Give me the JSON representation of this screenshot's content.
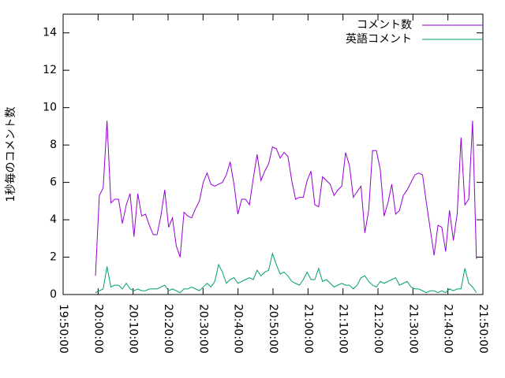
{
  "chart_data": {
    "type": "line",
    "ylabel": "1秒毎のコメント数",
    "x": [
      "19:59:15",
      "20:00:21",
      "20:01:27",
      "20:02:33",
      "20:03:39",
      "20:04:45",
      "20:05:51",
      "20:06:57",
      "20:08:03",
      "20:09:09",
      "20:10:15",
      "20:11:21",
      "20:12:27",
      "20:13:33",
      "20:14:39",
      "20:15:45",
      "20:16:51",
      "20:17:57",
      "20:19:03",
      "20:20:09",
      "20:21:15",
      "20:22:21",
      "20:23:27",
      "20:24:33",
      "20:25:39",
      "20:26:45",
      "20:27:51",
      "20:28:57",
      "20:30:03",
      "20:31:09",
      "20:32:15",
      "20:33:21",
      "20:34:27",
      "20:35:33",
      "20:36:39",
      "20:37:45",
      "20:38:51",
      "20:39:57",
      "20:41:03",
      "20:42:09",
      "20:43:15",
      "20:44:21",
      "20:45:27",
      "20:46:33",
      "20:47:39",
      "20:48:45",
      "20:49:51",
      "20:50:57",
      "20:52:03",
      "20:53:09",
      "20:54:15",
      "20:55:21",
      "20:56:27",
      "20:57:33",
      "20:58:39",
      "20:59:45",
      "21:00:51",
      "21:01:57",
      "21:03:03",
      "21:04:09",
      "21:05:15",
      "21:06:21",
      "21:07:27",
      "21:08:33",
      "21:09:39",
      "21:10:45",
      "21:11:51",
      "21:12:57",
      "21:14:03",
      "21:15:09",
      "21:16:15",
      "21:17:21",
      "21:18:27",
      "21:19:33",
      "21:20:39",
      "21:21:45",
      "21:22:51",
      "21:23:57",
      "21:25:03",
      "21:26:09",
      "21:27:15",
      "21:28:21",
      "21:29:27",
      "21:30:33",
      "21:31:39",
      "21:32:45",
      "21:33:51",
      "21:34:57",
      "21:36:03",
      "21:37:09",
      "21:38:15",
      "21:39:21",
      "21:40:27",
      "21:41:33",
      "21:42:39",
      "21:43:45",
      "21:44:51",
      "21:45:57",
      "21:47:03",
      "21:48:09"
    ],
    "series": [
      {
        "name": "コメント数",
        "color": "#9400d3",
        "values": [
          1.0,
          5.3,
          5.7,
          9.3,
          4.9,
          5.1,
          5.1,
          3.8,
          4.8,
          5.4,
          3.1,
          5.4,
          4.2,
          4.3,
          3.7,
          3.2,
          3.2,
          4.2,
          5.6,
          3.6,
          4.1,
          2.6,
          2.0,
          4.4,
          4.2,
          4.1,
          4.6,
          5.0,
          6.0,
          6.5,
          5.9,
          5.8,
          5.9,
          6.0,
          6.4,
          7.1,
          5.9,
          4.3,
          5.1,
          5.1,
          4.8,
          6.2,
          7.5,
          6.1,
          6.6,
          7.0,
          7.9,
          7.8,
          7.3,
          7.6,
          7.4,
          6.1,
          5.1,
          5.2,
          5.2,
          6.1,
          6.6,
          4.8,
          4.7,
          6.3,
          6.1,
          5.9,
          5.3,
          5.6,
          5.8,
          7.6,
          6.9,
          5.2,
          5.5,
          5.8,
          3.3,
          4.5,
          7.7,
          7.7,
          6.7,
          4.2,
          4.9,
          5.9,
          4.3,
          4.5,
          5.3,
          5.6,
          6.0,
          6.4,
          6.5,
          6.4,
          4.9,
          3.5,
          2.1,
          3.7,
          3.6,
          2.3,
          4.5,
          2.9,
          4.3,
          8.4,
          4.8,
          5.1,
          9.3,
          1.9
        ]
      },
      {
        "name": "英語コメント",
        "color": "#009e73",
        "values": [
          0.1,
          0.2,
          0.3,
          1.5,
          0.4,
          0.5,
          0.5,
          0.3,
          0.6,
          0.3,
          0.2,
          0.3,
          0.2,
          0.2,
          0.3,
          0.3,
          0.3,
          0.4,
          0.5,
          0.2,
          0.3,
          0.2,
          0.1,
          0.3,
          0.3,
          0.4,
          0.3,
          0.2,
          0.4,
          0.6,
          0.4,
          0.7,
          1.6,
          1.2,
          0.6,
          0.8,
          0.9,
          0.6,
          0.7,
          0.8,
          0.9,
          0.8,
          1.3,
          1.0,
          1.2,
          1.3,
          2.2,
          1.6,
          1.1,
          1.2,
          1.0,
          0.7,
          0.6,
          0.5,
          0.8,
          1.2,
          0.8,
          0.8,
          1.4,
          0.7,
          0.8,
          0.6,
          0.4,
          0.5,
          0.6,
          0.5,
          0.5,
          0.3,
          0.5,
          0.9,
          1.0,
          0.7,
          0.5,
          0.4,
          0.7,
          0.6,
          0.7,
          0.8,
          0.9,
          0.5,
          0.6,
          0.7,
          0.4,
          0.3,
          0.3,
          0.2,
          0.1,
          0.2,
          0.2,
          0.1,
          0.2,
          0.1,
          0.3,
          0.2,
          0.3,
          0.3,
          1.4,
          0.6,
          0.4,
          0.1
        ]
      }
    ],
    "xlim": [
      "19:50:00",
      "21:50:00"
    ],
    "xticks": [
      "19:50:00",
      "20:00:00",
      "20:10:00",
      "20:20:00",
      "20:30:00",
      "20:40:00",
      "20:50:00",
      "21:00:00",
      "21:10:00",
      "21:20:00",
      "21:30:00",
      "21:40:00",
      "21:50:00"
    ],
    "ylim": [
      0,
      15
    ],
    "yticks": [
      0,
      2,
      4,
      6,
      8,
      10,
      12,
      14
    ],
    "legend": "top-right",
    "grid": false
  }
}
